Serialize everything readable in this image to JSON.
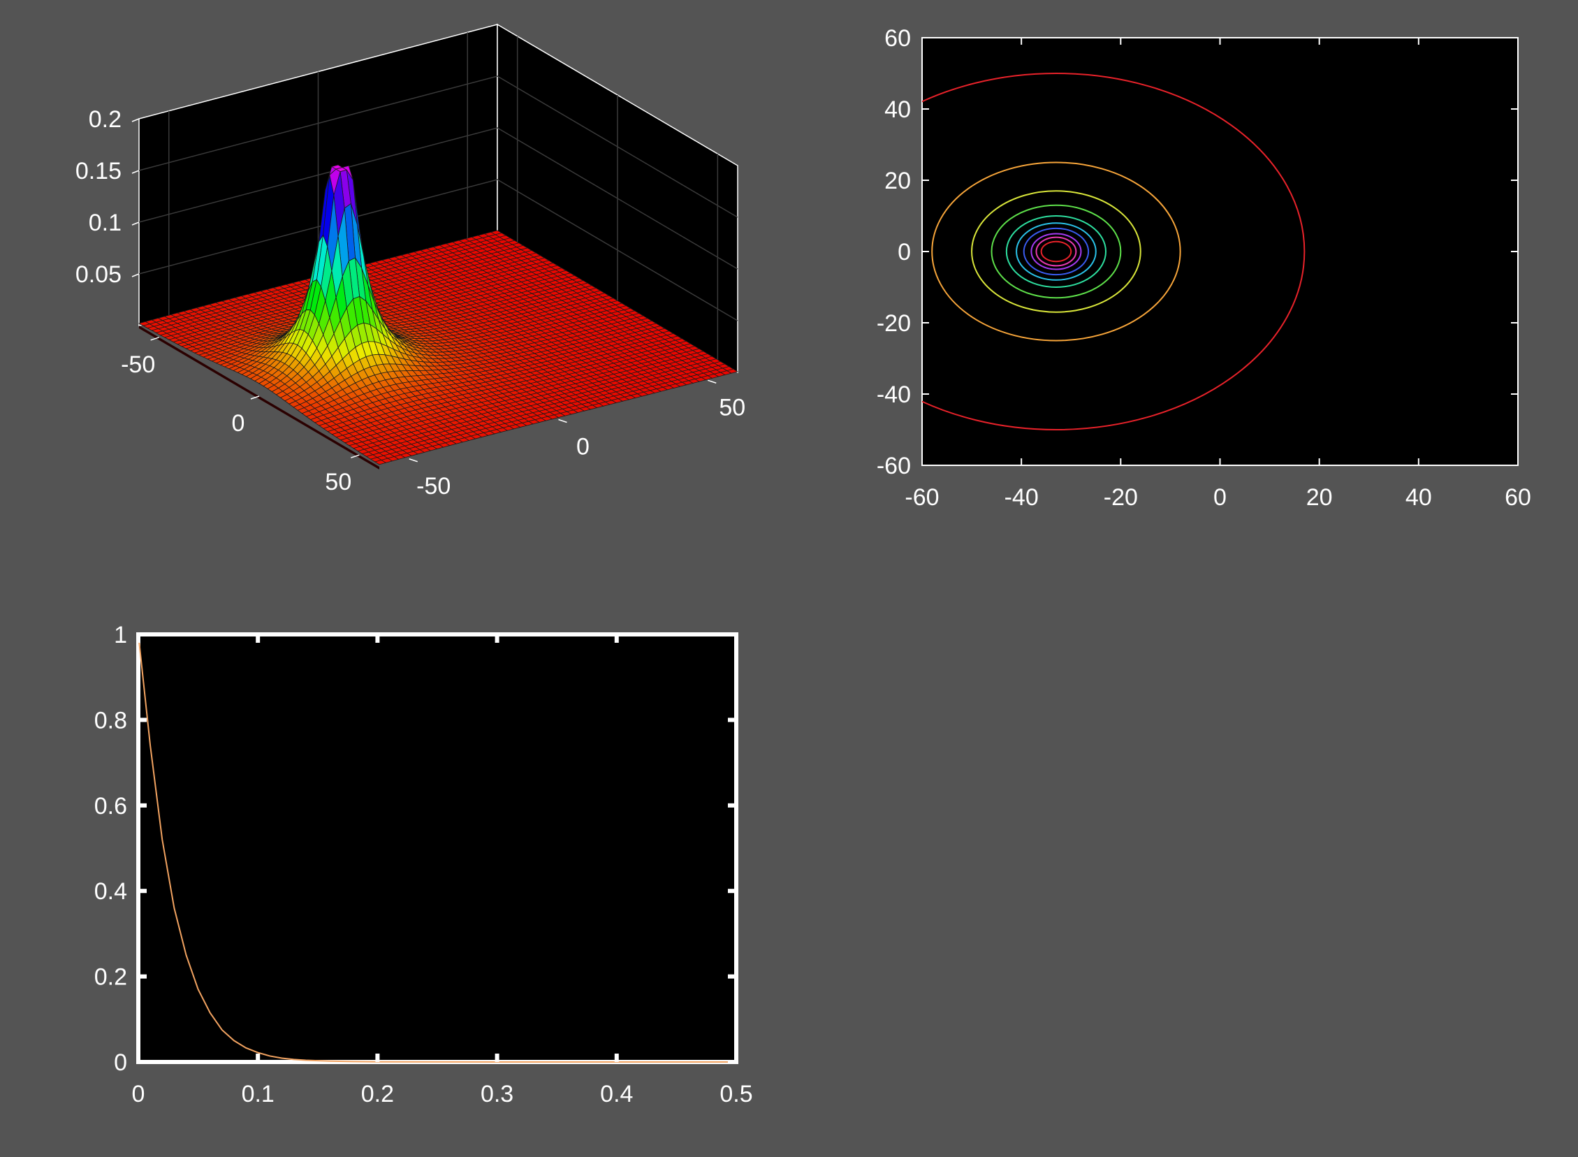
{
  "colors": {
    "figure_bg": "#545454",
    "axes_bg": "#000000",
    "axes_line": "#ffffff",
    "text": "#ffffff",
    "decay_line": "#f2a361",
    "grid": "#3a3a3a"
  },
  "chart_data": [
    {
      "type": "surface",
      "description_key": "3d-surface",
      "x_ticks": [
        "-50",
        "0",
        "50"
      ],
      "y_ticks": [
        "-50",
        "0",
        "50"
      ],
      "z_ticks": [
        "0.05",
        "0.1",
        "0.15",
        "0.2"
      ],
      "xlim": [
        -60,
        60
      ],
      "ylim": [
        -60,
        60
      ],
      "zlim": [
        0,
        0.2
      ],
      "peak": {
        "x": -33,
        "y": 0,
        "z": 0.2
      },
      "colormap": "hsv",
      "grid": true
    },
    {
      "type": "contour",
      "x_ticks": [
        "-60",
        "-40",
        "-20",
        "0",
        "20",
        "40",
        "60"
      ],
      "y_ticks": [
        "60",
        "40",
        "20",
        "0",
        "-20",
        "-40",
        "-60"
      ],
      "xlim": [
        -60,
        60
      ],
      "ylim": [
        -60,
        60
      ],
      "center": {
        "x": -33,
        "y": 0
      },
      "contours": [
        {
          "rx": 50,
          "ry": 50,
          "color": "#e8222a"
        },
        {
          "rx": 25,
          "ry": 25,
          "color": "#f7a53a"
        },
        {
          "rx": 17,
          "ry": 17,
          "color": "#d9e63a"
        },
        {
          "rx": 13,
          "ry": 13,
          "color": "#5ee04a"
        },
        {
          "rx": 10,
          "ry": 10,
          "color": "#2ee0a0"
        },
        {
          "rx": 8,
          "ry": 8,
          "color": "#2ac2e8"
        },
        {
          "rx": 6.5,
          "ry": 6.5,
          "color": "#3a5cf0"
        },
        {
          "rx": 5,
          "ry": 5,
          "color": "#a33af0"
        },
        {
          "rx": 4,
          "ry": 4,
          "color": "#e83ab0"
        },
        {
          "rx": 3,
          "ry": 2.8,
          "color": "#e8222a"
        }
      ],
      "grid": false
    },
    {
      "type": "line",
      "x_ticks": [
        "0",
        "0.1",
        "0.2",
        "0.3",
        "0.4",
        "0.5"
      ],
      "y_ticks": [
        "0",
        "0.2",
        "0.4",
        "0.6",
        "0.8",
        "1"
      ],
      "xlim": [
        0,
        0.5
      ],
      "ylim": [
        0,
        1
      ],
      "series": [
        {
          "color": "#f2a361",
          "x": [
            0,
            0.01,
            0.02,
            0.03,
            0.04,
            0.05,
            0.06,
            0.07,
            0.08,
            0.09,
            0.1,
            0.11,
            0.12,
            0.13,
            0.14,
            0.15,
            0.16,
            0.18,
            0.2,
            0.25,
            0.3,
            0.35,
            0.4,
            0.45,
            0.5
          ],
          "y": [
            1.0,
            0.74,
            0.52,
            0.36,
            0.25,
            0.17,
            0.115,
            0.075,
            0.05,
            0.033,
            0.022,
            0.014,
            0.009,
            0.006,
            0.004,
            0.003,
            0.002,
            0.001,
            0.0005,
            0.0002,
            0.0001,
            0.0,
            0.0,
            0.0,
            0.0
          ]
        }
      ],
      "grid": false
    }
  ]
}
